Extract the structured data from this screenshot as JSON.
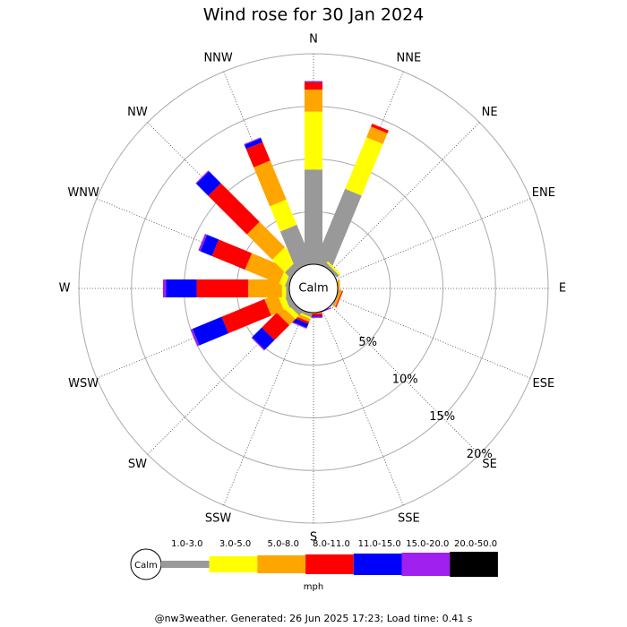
{
  "chart_data": {
    "type": "windrose",
    "title": "Wind rose for 30 Jan 2024",
    "categories": [
      "N",
      "NNE",
      "NE",
      "ENE",
      "E",
      "ESE",
      "SE",
      "SSE",
      "S",
      "SSW",
      "SW",
      "WSW",
      "W",
      "WNW",
      "NW",
      "NNW"
    ],
    "series": [
      {
        "name": "1.0-3.0",
        "color": "#999999",
        "values": [
          9.0,
          7.6,
          0.3,
          0,
          0,
          0.1,
          0,
          0,
          0,
          0.3,
          0.5,
          0.5,
          0.3,
          0.3,
          0.7,
          3.9
        ]
      },
      {
        "name": "3.0-5.0",
        "color": "#ffff00",
        "values": [
          5.5,
          5.3,
          0.2,
          0,
          0,
          0,
          0,
          0,
          0,
          0.2,
          0.5,
          0.6,
          0.4,
          0.6,
          1.7,
          2.6
        ]
      },
      {
        "name": "5.0-8.0",
        "color": "#ffa500",
        "values": [
          2.1,
          1.1,
          0,
          0,
          0.2,
          0.2,
          0,
          0,
          0.1,
          0.3,
          0.8,
          1.3,
          3.2,
          3.5,
          3.4,
          4.0
        ]
      },
      {
        "name": "8.0-11.0",
        "color": "#ff0000",
        "values": [
          0.7,
          0.3,
          0,
          0,
          0,
          0.1,
          0,
          0,
          0.2,
          0.2,
          2.0,
          4.4,
          4.9,
          3.4,
          5.2,
          1.9
        ]
      },
      {
        "name": "11.0-15.0",
        "color": "#0000ff",
        "values": [
          0.05,
          0,
          0,
          0,
          0,
          0,
          0,
          0,
          0.1,
          0.4,
          1.3,
          3.0,
          2.9,
          1.2,
          1.6,
          0.4
        ]
      },
      {
        "name": "15.0-20.0",
        "color": "#a020f0",
        "values": [
          0.05,
          0,
          0,
          0,
          0,
          0,
          0,
          0.1,
          0.1,
          0.1,
          0.1,
          0.2,
          0.3,
          0.2,
          0.1,
          0.1
        ]
      },
      {
        "name": "20.0-50.0",
        "color": "#000000",
        "values": [
          0,
          0,
          0,
          0,
          0,
          0,
          0,
          0,
          0,
          0,
          0,
          0,
          0,
          0,
          0,
          0
        ]
      }
    ],
    "rlim": [
      0,
      20
    ],
    "rticks": [
      {
        "value": 5,
        "label": "5%"
      },
      {
        "value": 10,
        "label": "10%"
      },
      {
        "value": 15,
        "label": "15%"
      },
      {
        "value": 20,
        "label": "20%"
      }
    ],
    "calm_label": "Calm",
    "legend_unit": "mph",
    "footer": "@nw3weather. Generated: 26 Jun 2025 17:23; Load time: 0.41 s"
  }
}
